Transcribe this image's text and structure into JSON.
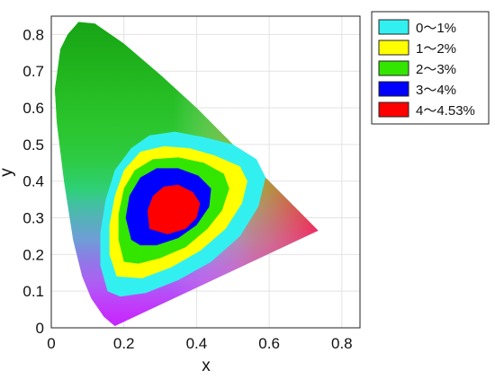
{
  "chart_data": {
    "type": "heatmap",
    "title": "",
    "xlabel": "x",
    "ylabel": "y",
    "xlim": [
      0,
      0.85
    ],
    "ylim": [
      0,
      0.85
    ],
    "x_ticks": [
      "0",
      "0.2",
      "0.4",
      "0.6",
      "0.8"
    ],
    "y_ticks": [
      "0",
      "0.1",
      "0.2",
      "0.3",
      "0.4",
      "0.5",
      "0.6",
      "0.7",
      "0.8"
    ],
    "grid": true,
    "legend_position": "top-right",
    "legend": [
      {
        "label": "0～1%",
        "color": "#33f0f0"
      },
      {
        "label": "1～2%",
        "color": "#ffff00"
      },
      {
        "label": "2～3%",
        "color": "#33e600"
      },
      {
        "label": "3～4%",
        "color": "#0000ff"
      },
      {
        "label": "4～4.53%",
        "color": "#ff0000"
      }
    ],
    "gamut_boundary": [
      [
        0.175,
        0.005
      ],
      [
        0.145,
        0.03
      ],
      [
        0.11,
        0.08
      ],
      [
        0.085,
        0.14
      ],
      [
        0.06,
        0.24
      ],
      [
        0.035,
        0.4
      ],
      [
        0.015,
        0.56
      ],
      [
        0.01,
        0.65
      ],
      [
        0.025,
        0.76
      ],
      [
        0.045,
        0.8
      ],
      [
        0.075,
        0.834
      ],
      [
        0.12,
        0.83
      ],
      [
        0.2,
        0.775
      ],
      [
        0.3,
        0.69
      ],
      [
        0.4,
        0.6
      ],
      [
        0.5,
        0.5
      ],
      [
        0.6,
        0.4
      ],
      [
        0.735,
        0.265
      ],
      [
        0.175,
        0.005
      ]
    ],
    "regions": [
      {
        "range": "0～1%",
        "points": [
          [
            0.155,
            0.1
          ],
          [
            0.135,
            0.17
          ],
          [
            0.135,
            0.26
          ],
          [
            0.15,
            0.35
          ],
          [
            0.175,
            0.43
          ],
          [
            0.22,
            0.49
          ],
          [
            0.27,
            0.525
          ],
          [
            0.34,
            0.535
          ],
          [
            0.42,
            0.52
          ],
          [
            0.5,
            0.5
          ],
          [
            0.565,
            0.46
          ],
          [
            0.59,
            0.41
          ],
          [
            0.57,
            0.33
          ],
          [
            0.52,
            0.25
          ],
          [
            0.44,
            0.18
          ],
          [
            0.35,
            0.13
          ],
          [
            0.26,
            0.095
          ],
          [
            0.19,
            0.085
          ]
        ]
      },
      {
        "range": "1～2%",
        "points": [
          [
            0.18,
            0.14
          ],
          [
            0.16,
            0.2
          ],
          [
            0.16,
            0.28
          ],
          [
            0.175,
            0.36
          ],
          [
            0.2,
            0.43
          ],
          [
            0.245,
            0.48
          ],
          [
            0.31,
            0.495
          ],
          [
            0.38,
            0.49
          ],
          [
            0.45,
            0.47
          ],
          [
            0.52,
            0.44
          ],
          [
            0.54,
            0.4
          ],
          [
            0.525,
            0.34
          ],
          [
            0.48,
            0.27
          ],
          [
            0.41,
            0.21
          ],
          [
            0.33,
            0.165
          ],
          [
            0.25,
            0.135
          ]
        ]
      },
      {
        "range": "2～3%",
        "points": [
          [
            0.2,
            0.18
          ],
          [
            0.185,
            0.24
          ],
          [
            0.185,
            0.31
          ],
          [
            0.2,
            0.38
          ],
          [
            0.23,
            0.43
          ],
          [
            0.28,
            0.46
          ],
          [
            0.35,
            0.465
          ],
          [
            0.42,
            0.45
          ],
          [
            0.475,
            0.42
          ],
          [
            0.49,
            0.38
          ],
          [
            0.47,
            0.32
          ],
          [
            0.43,
            0.27
          ],
          [
            0.37,
            0.22
          ],
          [
            0.3,
            0.19
          ],
          [
            0.24,
            0.175
          ]
        ]
      },
      {
        "range": "3～4%",
        "points": [
          [
            0.22,
            0.24
          ],
          [
            0.205,
            0.3
          ],
          [
            0.215,
            0.36
          ],
          [
            0.245,
            0.41
          ],
          [
            0.29,
            0.435
          ],
          [
            0.35,
            0.435
          ],
          [
            0.405,
            0.415
          ],
          [
            0.44,
            0.38
          ],
          [
            0.435,
            0.33
          ],
          [
            0.4,
            0.28
          ],
          [
            0.35,
            0.245
          ],
          [
            0.29,
            0.225
          ],
          [
            0.245,
            0.225
          ]
        ]
      },
      {
        "range": "4～4.53%",
        "points": [
          [
            0.27,
            0.27
          ],
          [
            0.265,
            0.32
          ],
          [
            0.28,
            0.36
          ],
          [
            0.31,
            0.385
          ],
          [
            0.35,
            0.39
          ],
          [
            0.39,
            0.37
          ],
          [
            0.41,
            0.34
          ],
          [
            0.4,
            0.3
          ],
          [
            0.37,
            0.27
          ],
          [
            0.32,
            0.255
          ]
        ]
      }
    ]
  }
}
